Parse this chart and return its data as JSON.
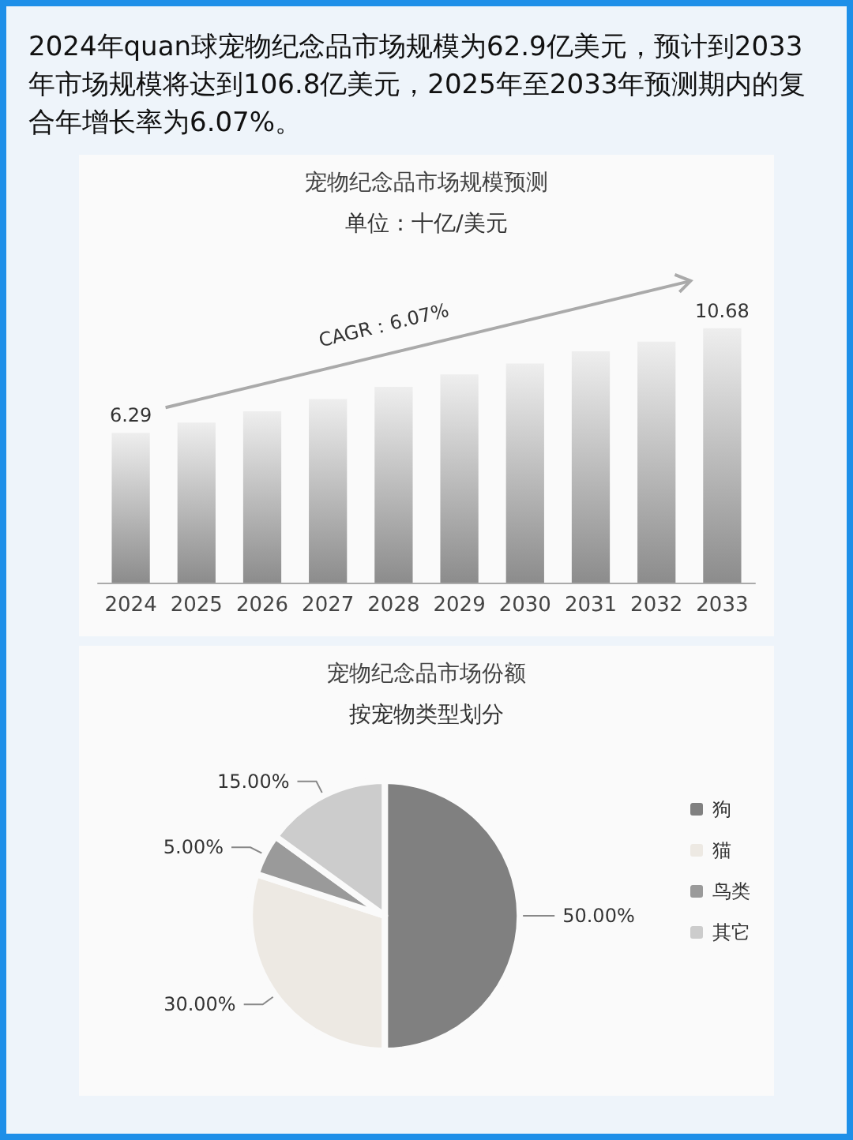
{
  "chart_data": [
    {
      "type": "bar",
      "title": "宠物纪念品市场规模预测",
      "subtitle": "单位：十亿/美元",
      "annotations": [
        "2024年quan球宠物纪念品市场规模为62.9亿美元，预计到2033年市场规模将达到106.8亿美元，2025年至2033年预测期内的复合年增长率为6.07%。",
        "CAGR：6.07%"
      ],
      "categories": [
        "2024",
        "2025",
        "2026",
        "2027",
        "2028",
        "2029",
        "2030",
        "2031",
        "2032",
        "2033"
      ],
      "values": [
        6.29,
        6.72,
        7.19,
        7.71,
        8.22,
        8.74,
        9.2,
        9.71,
        10.12,
        10.68
      ],
      "value_labels": [
        "6.29",
        null,
        null,
        null,
        null,
        null,
        null,
        null,
        null,
        "10.68"
      ],
      "color": "#8c8c8c",
      "tick_labels": "x"
    },
    {
      "type": "pie",
      "title": "宠物纪念品市场份额",
      "subtitle": "按宠物类型划分",
      "categories": [
        "狗",
        "猫",
        "鸟类",
        "其它"
      ],
      "values": [
        50,
        30,
        5,
        15
      ],
      "colors": [
        "#808080",
        "#ede9e3",
        "#9a9a9a",
        "#cccccc"
      ],
      "value_labels": [
        "50.00%",
        "30.00%",
        "5.00%",
        "15.00%"
      ],
      "legend": "right"
    }
  ]
}
